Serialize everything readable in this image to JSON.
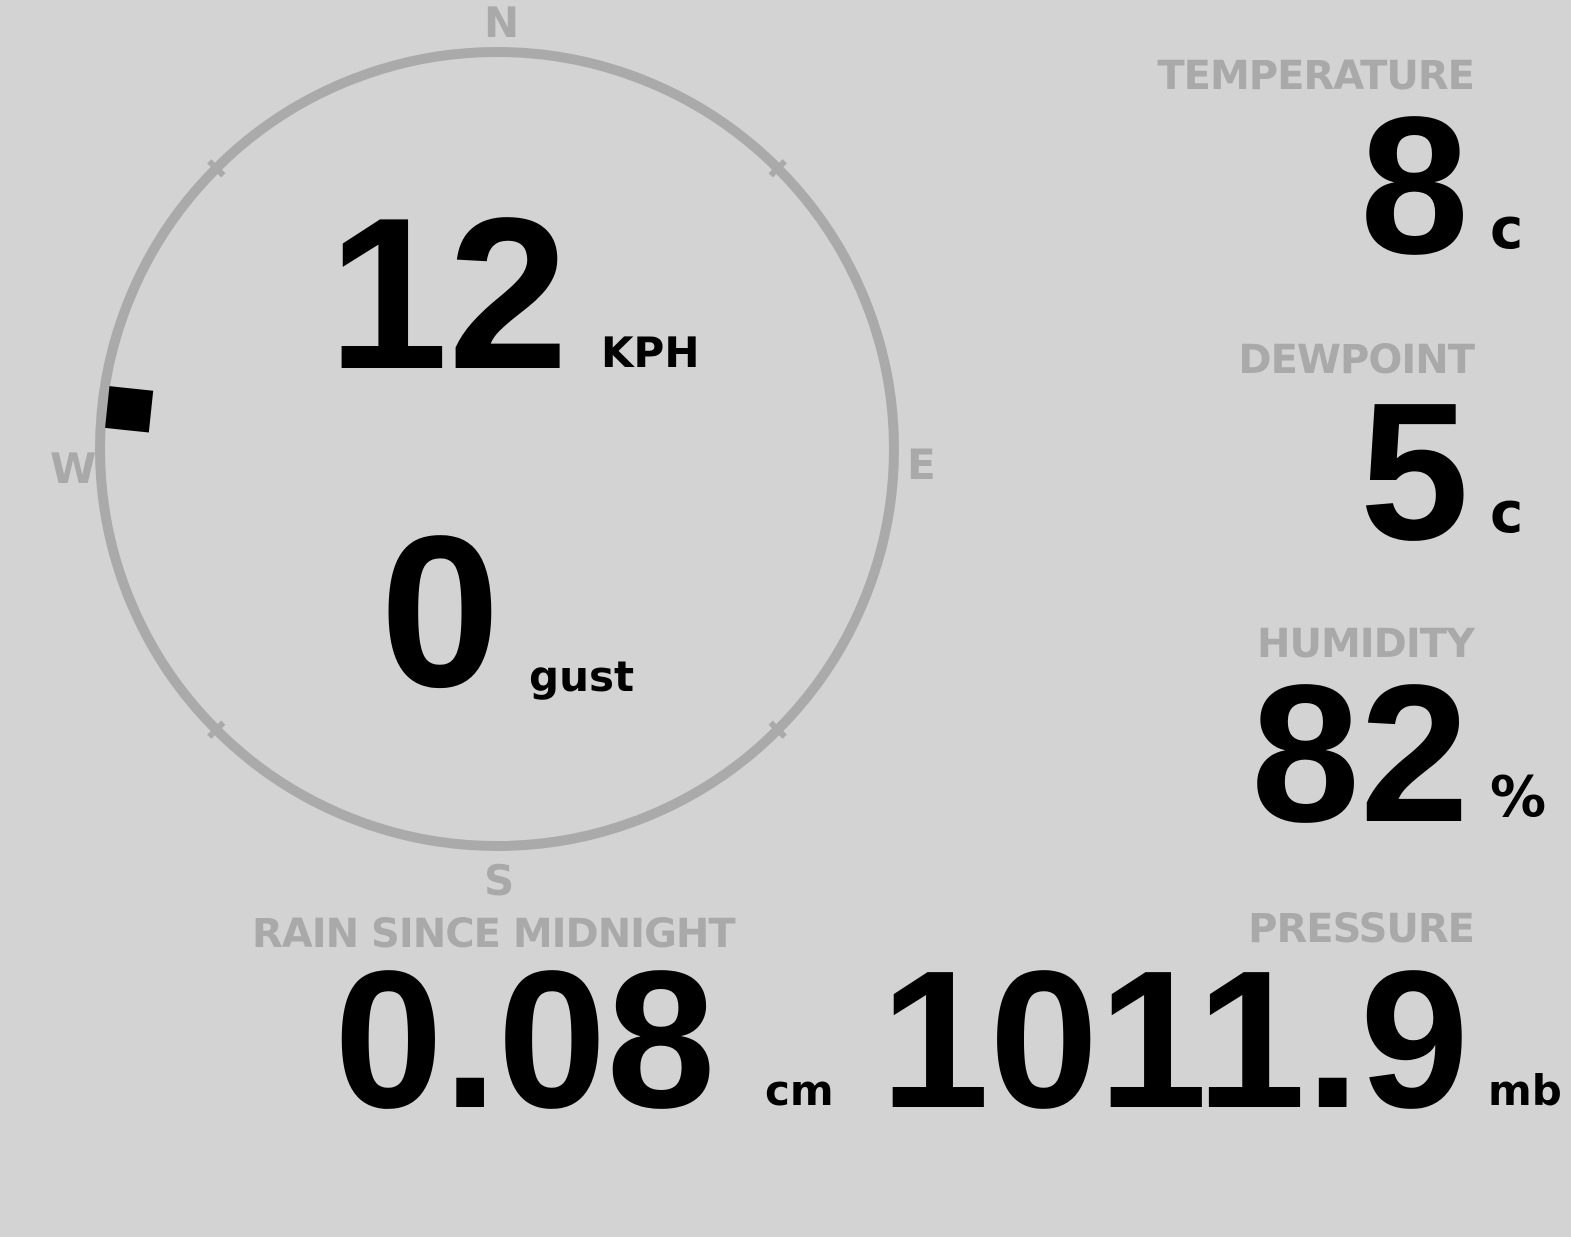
{
  "wind": {
    "speed": "12",
    "speed_unit": "KPH",
    "gust": "0",
    "gust_unit": "gust",
    "direction_degrees": 276,
    "cardinals": {
      "n": "N",
      "e": "E",
      "s": "S",
      "w": "W"
    }
  },
  "temperature": {
    "label": "TEMPERATURE",
    "value": "8",
    "unit": "c"
  },
  "dewpoint": {
    "label": "DEWPOINT",
    "value": "5",
    "unit": "c"
  },
  "humidity": {
    "label": "HUMIDITY",
    "value": "82",
    "unit": "%"
  },
  "rain": {
    "label": "RAIN SINCE MIDNIGHT",
    "value": "0.08",
    "unit": "cm"
  },
  "pressure": {
    "label": "PRESSURE",
    "value": "1011.9",
    "unit": "mb"
  },
  "colors": {
    "background": "#d3d3d3",
    "label": "#a9a9a9",
    "value": "#000000",
    "dial": "#aaaaaa"
  }
}
